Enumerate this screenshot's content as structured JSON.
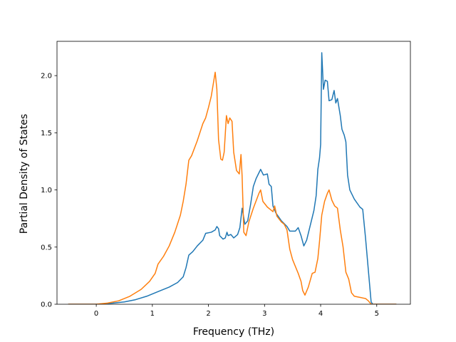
{
  "chart_data": {
    "type": "line",
    "title": "",
    "xlabel": "Frequency (THz)",
    "ylabel": "Partial Density of States",
    "xlim": [
      -0.7,
      5.6
    ],
    "ylim": [
      0.0,
      2.3
    ],
    "x_ticks": [
      0,
      1,
      2,
      3,
      4,
      5
    ],
    "y_ticks": [
      0.0,
      0.5,
      1.0,
      1.5,
      2.0
    ],
    "x_tick_labels": [
      "0",
      "1",
      "2",
      "3",
      "4",
      "5"
    ],
    "y_tick_labels": [
      "0.0",
      "0.5",
      "1.0",
      "1.5",
      "2.0"
    ],
    "grid": false,
    "legend": "none",
    "series": [
      {
        "color": "#1f77b4",
        "points": [
          [
            -0.5,
            0
          ],
          [
            0,
            0
          ],
          [
            0.3,
            0.01
          ],
          [
            0.5,
            0.02
          ],
          [
            0.7,
            0.04
          ],
          [
            0.9,
            0.07
          ],
          [
            1.1,
            0.11
          ],
          [
            1.3,
            0.15
          ],
          [
            1.45,
            0.19
          ],
          [
            1.55,
            0.24
          ],
          [
            1.6,
            0.32
          ],
          [
            1.65,
            0.43
          ],
          [
            1.72,
            0.46
          ],
          [
            1.8,
            0.51
          ],
          [
            1.9,
            0.56
          ],
          [
            1.95,
            0.62
          ],
          [
            2.05,
            0.63
          ],
          [
            2.12,
            0.65
          ],
          [
            2.15,
            0.68
          ],
          [
            2.18,
            0.66
          ],
          [
            2.2,
            0.6
          ],
          [
            2.26,
            0.57
          ],
          [
            2.3,
            0.58
          ],
          [
            2.33,
            0.63
          ],
          [
            2.35,
            0.6
          ],
          [
            2.4,
            0.61
          ],
          [
            2.45,
            0.58
          ],
          [
            2.52,
            0.61
          ],
          [
            2.56,
            0.67
          ],
          [
            2.6,
            0.84
          ],
          [
            2.65,
            0.7
          ],
          [
            2.7,
            0.73
          ],
          [
            2.75,
            0.87
          ],
          [
            2.8,
            1.03
          ],
          [
            2.85,
            1.1
          ],
          [
            2.9,
            1.15
          ],
          [
            2.93,
            1.18
          ],
          [
            2.98,
            1.13
          ],
          [
            3.05,
            1.14
          ],
          [
            3.08,
            1.05
          ],
          [
            3.12,
            1.03
          ],
          [
            3.15,
            0.86
          ],
          [
            3.2,
            0.8
          ],
          [
            3.3,
            0.73
          ],
          [
            3.4,
            0.68
          ],
          [
            3.45,
            0.64
          ],
          [
            3.55,
            0.64
          ],
          [
            3.6,
            0.67
          ],
          [
            3.65,
            0.6
          ],
          [
            3.7,
            0.51
          ],
          [
            3.75,
            0.56
          ],
          [
            3.8,
            0.66
          ],
          [
            3.88,
            0.82
          ],
          [
            3.92,
            0.95
          ],
          [
            3.95,
            1.18
          ],
          [
            3.98,
            1.28
          ],
          [
            4.0,
            1.4
          ],
          [
            4.02,
            2.2
          ],
          [
            4.05,
            1.88
          ],
          [
            4.08,
            1.96
          ],
          [
            4.12,
            1.95
          ],
          [
            4.15,
            1.78
          ],
          [
            4.2,
            1.79
          ],
          [
            4.24,
            1.87
          ],
          [
            4.27,
            1.76
          ],
          [
            4.3,
            1.8
          ],
          [
            4.35,
            1.65
          ],
          [
            4.38,
            1.53
          ],
          [
            4.42,
            1.48
          ],
          [
            4.45,
            1.42
          ],
          [
            4.48,
            1.13
          ],
          [
            4.52,
            1.0
          ],
          [
            4.6,
            0.92
          ],
          [
            4.7,
            0.85
          ],
          [
            4.75,
            0.83
          ],
          [
            4.8,
            0.58
          ],
          [
            4.85,
            0.3
          ],
          [
            4.9,
            0.02
          ],
          [
            4.93,
            0
          ],
          [
            5.35,
            0
          ]
        ]
      },
      {
        "color": "#ff7f0e",
        "points": [
          [
            -0.5,
            0
          ],
          [
            0,
            0
          ],
          [
            0.2,
            0.01
          ],
          [
            0.4,
            0.03
          ],
          [
            0.6,
            0.07
          ],
          [
            0.8,
            0.13
          ],
          [
            0.95,
            0.2
          ],
          [
            1.05,
            0.27
          ],
          [
            1.1,
            0.35
          ],
          [
            1.2,
            0.42
          ],
          [
            1.3,
            0.51
          ],
          [
            1.4,
            0.63
          ],
          [
            1.5,
            0.78
          ],
          [
            1.55,
            0.9
          ],
          [
            1.6,
            1.05
          ],
          [
            1.65,
            1.26
          ],
          [
            1.7,
            1.3
          ],
          [
            1.8,
            1.43
          ],
          [
            1.9,
            1.58
          ],
          [
            1.95,
            1.63
          ],
          [
            2.0,
            1.72
          ],
          [
            2.05,
            1.82
          ],
          [
            2.1,
            1.97
          ],
          [
            2.12,
            2.03
          ],
          [
            2.15,
            1.88
          ],
          [
            2.18,
            1.44
          ],
          [
            2.22,
            1.27
          ],
          [
            2.25,
            1.26
          ],
          [
            2.28,
            1.33
          ],
          [
            2.32,
            1.65
          ],
          [
            2.35,
            1.58
          ],
          [
            2.38,
            1.63
          ],
          [
            2.42,
            1.6
          ],
          [
            2.45,
            1.33
          ],
          [
            2.5,
            1.17
          ],
          [
            2.55,
            1.14
          ],
          [
            2.58,
            1.31
          ],
          [
            2.6,
            1.12
          ],
          [
            2.63,
            0.63
          ],
          [
            2.67,
            0.6
          ],
          [
            2.72,
            0.72
          ],
          [
            2.8,
            0.84
          ],
          [
            2.9,
            0.97
          ],
          [
            2.93,
            1.0
          ],
          [
            2.97,
            0.9
          ],
          [
            3.05,
            0.85
          ],
          [
            3.1,
            0.83
          ],
          [
            3.15,
            0.81
          ],
          [
            3.18,
            0.86
          ],
          [
            3.22,
            0.77
          ],
          [
            3.3,
            0.72
          ],
          [
            3.35,
            0.7
          ],
          [
            3.4,
            0.65
          ],
          [
            3.45,
            0.48
          ],
          [
            3.5,
            0.39
          ],
          [
            3.6,
            0.27
          ],
          [
            3.65,
            0.2
          ],
          [
            3.68,
            0.12
          ],
          [
            3.72,
            0.08
          ],
          [
            3.78,
            0.15
          ],
          [
            3.85,
            0.27
          ],
          [
            3.9,
            0.28
          ],
          [
            3.95,
            0.4
          ],
          [
            3.98,
            0.55
          ],
          [
            4.02,
            0.78
          ],
          [
            4.07,
            0.9
          ],
          [
            4.12,
            0.97
          ],
          [
            4.15,
            1.0
          ],
          [
            4.2,
            0.91
          ],
          [
            4.25,
            0.86
          ],
          [
            4.3,
            0.84
          ],
          [
            4.35,
            0.65
          ],
          [
            4.4,
            0.5
          ],
          [
            4.45,
            0.28
          ],
          [
            4.5,
            0.22
          ],
          [
            4.55,
            0.1
          ],
          [
            4.6,
            0.07
          ],
          [
            4.7,
            0.06
          ],
          [
            4.8,
            0.05
          ],
          [
            4.85,
            0.03
          ],
          [
            4.9,
            0
          ],
          [
            5.35,
            0
          ]
        ]
      }
    ]
  }
}
